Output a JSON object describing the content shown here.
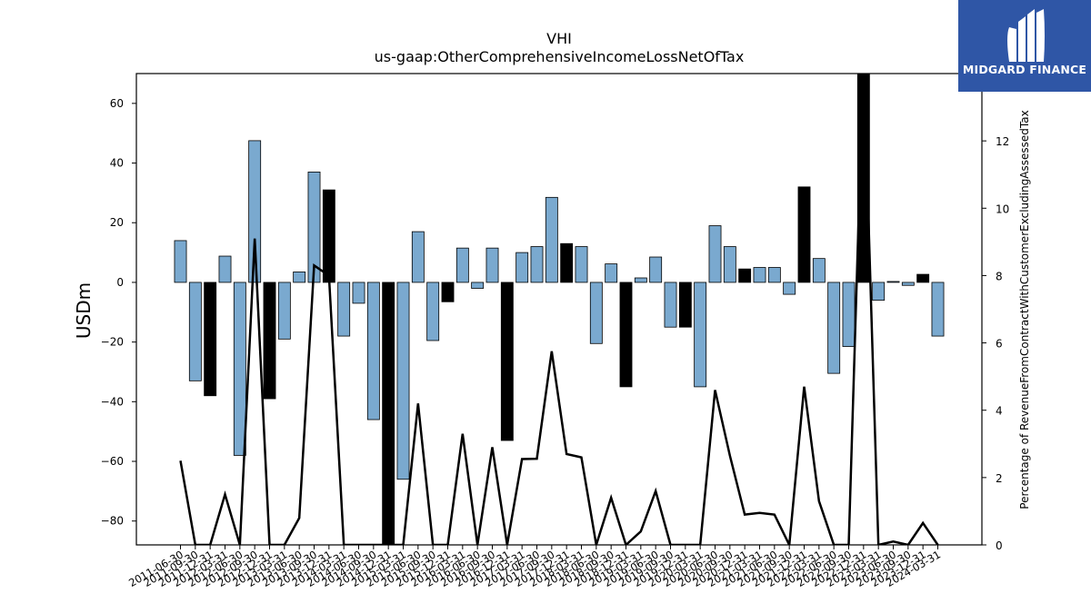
{
  "chart_data": {
    "type": "bar",
    "title": "VHI",
    "subtitle": "us-gaap:OtherComprehensiveIncomeLossNetOfTax",
    "ylabel": "USDm",
    "y2label": "Percentage of RevenueFromContractWithCustomerExcludingAssessedTax",
    "ylim": [
      -88,
      70
    ],
    "y2lim": [
      0,
      14.0
    ],
    "yticks": [
      "60",
      "40",
      "20",
      "0",
      "−20",
      "−40",
      "−60",
      "−80"
    ],
    "y2ticks": [
      "12",
      "10",
      "8",
      "6",
      "4",
      "2",
      "0"
    ],
    "categories": [
      "2011-06-30",
      "2011-09-30",
      "2011-12-31",
      "2012-03-31",
      "2012-06-30",
      "2012-09-30",
      "2012-12-31",
      "2013-03-31",
      "2013-06-30",
      "2013-09-30",
      "2013-12-31",
      "2014-03-31",
      "2014-06-30",
      "2014-09-30",
      "2014-12-31",
      "2015-03-31",
      "2015-06-30",
      "2015-09-30",
      "2015-12-31",
      "2016-03-31",
      "2016-06-30",
      "2016-09-30",
      "2016-12-31",
      "2017-03-31",
      "2017-06-30",
      "2017-09-30",
      "2017-12-31",
      "2018-03-31",
      "2018-06-30",
      "2018-09-30",
      "2018-12-31",
      "2019-03-31",
      "2019-06-30",
      "2019-09-30",
      "2019-12-31",
      "2020-03-31",
      "2020-06-30",
      "2020-09-30",
      "2020-12-31",
      "2021-03-31",
      "2021-06-30",
      "2021-09-30",
      "2021-12-31",
      "2022-03-31",
      "2022-06-30",
      "2022-09-30",
      "2022-12-31",
      "2023-03-31",
      "2023-06-30",
      "2023-09-30",
      "2023-12-31",
      "2024-03-31"
    ],
    "series": [
      {
        "values": [
          14,
          -33,
          -38,
          8.8,
          -58,
          47.5,
          -39,
          -19,
          3.5,
          37,
          31,
          -18,
          -7,
          -46,
          -88,
          -66,
          17,
          -19.5,
          -6.5,
          11.5,
          -2,
          11.5,
          -53,
          10,
          12,
          28.5,
          13,
          12,
          -20.5,
          6.2,
          -35,
          1.5,
          8.5,
          -15,
          -15,
          -35,
          19,
          12,
          4.5,
          5,
          5,
          -4,
          32,
          8,
          -30.5,
          -21.5,
          70,
          -6,
          0.3,
          -1,
          2.7,
          -18
        ]
      },
      {
        "values": [
          2.5,
          0,
          0,
          1.5,
          0,
          9.1,
          0,
          0,
          0.8,
          8.3,
          8.0,
          0,
          0,
          0,
          0,
          0,
          4.2,
          0,
          0,
          3.3,
          0,
          2.9,
          0,
          2.55,
          2.56,
          5.75,
          2.7,
          2.6,
          0,
          1.4,
          0,
          0.4,
          1.6,
          0,
          0,
          0,
          4.6,
          2.65,
          0.9,
          0.95,
          0.9,
          0,
          4.7,
          1.3,
          0,
          0,
          14.5,
          0,
          0.1,
          0,
          0.65,
          0
        ]
      }
    ],
    "highlight_bars": [
      2,
      6,
      10,
      14,
      18,
      22,
      26,
      30,
      34,
      38,
      42,
      46,
      50
    ],
    "colors": {
      "bar": "#7aa9cf",
      "highlight": "#000000",
      "line": "#000000"
    },
    "grid": false
  },
  "logo": {
    "text": "MIDGARD FINANCE",
    "background": "#2f56a6"
  }
}
